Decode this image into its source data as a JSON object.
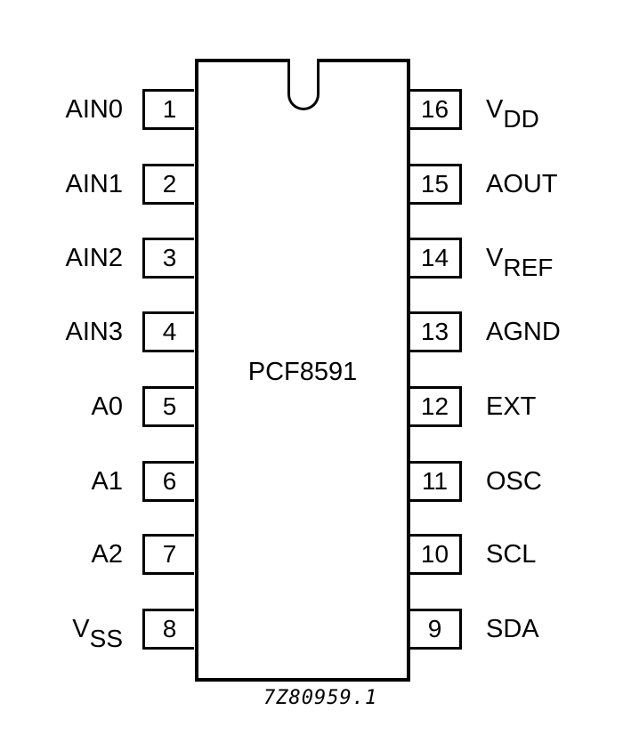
{
  "part_name": "PCF8591",
  "ref_code": "7Z80959.1",
  "left_pins": [
    {
      "number": "1",
      "label": "AIN0",
      "sub": ""
    },
    {
      "number": "2",
      "label": "AIN1",
      "sub": ""
    },
    {
      "number": "3",
      "label": "AIN2",
      "sub": ""
    },
    {
      "number": "4",
      "label": "AIN3",
      "sub": ""
    },
    {
      "number": "5",
      "label": "A0",
      "sub": ""
    },
    {
      "number": "6",
      "label": "A1",
      "sub": ""
    },
    {
      "number": "7",
      "label": "A2",
      "sub": ""
    },
    {
      "number": "8",
      "label": "V",
      "sub": "SS"
    }
  ],
  "right_pins": [
    {
      "number": "16",
      "label": "V",
      "sub": "DD"
    },
    {
      "number": "15",
      "label": "AOUT",
      "sub": ""
    },
    {
      "number": "14",
      "label": "V",
      "sub": "REF"
    },
    {
      "number": "13",
      "label": "AGND",
      "sub": ""
    },
    {
      "number": "12",
      "label": "EXT",
      "sub": ""
    },
    {
      "number": "11",
      "label": "OSC",
      "sub": ""
    },
    {
      "number": "10",
      "label": "SCL",
      "sub": ""
    },
    {
      "number": "9",
      "label": "SDA",
      "sub": ""
    }
  ]
}
